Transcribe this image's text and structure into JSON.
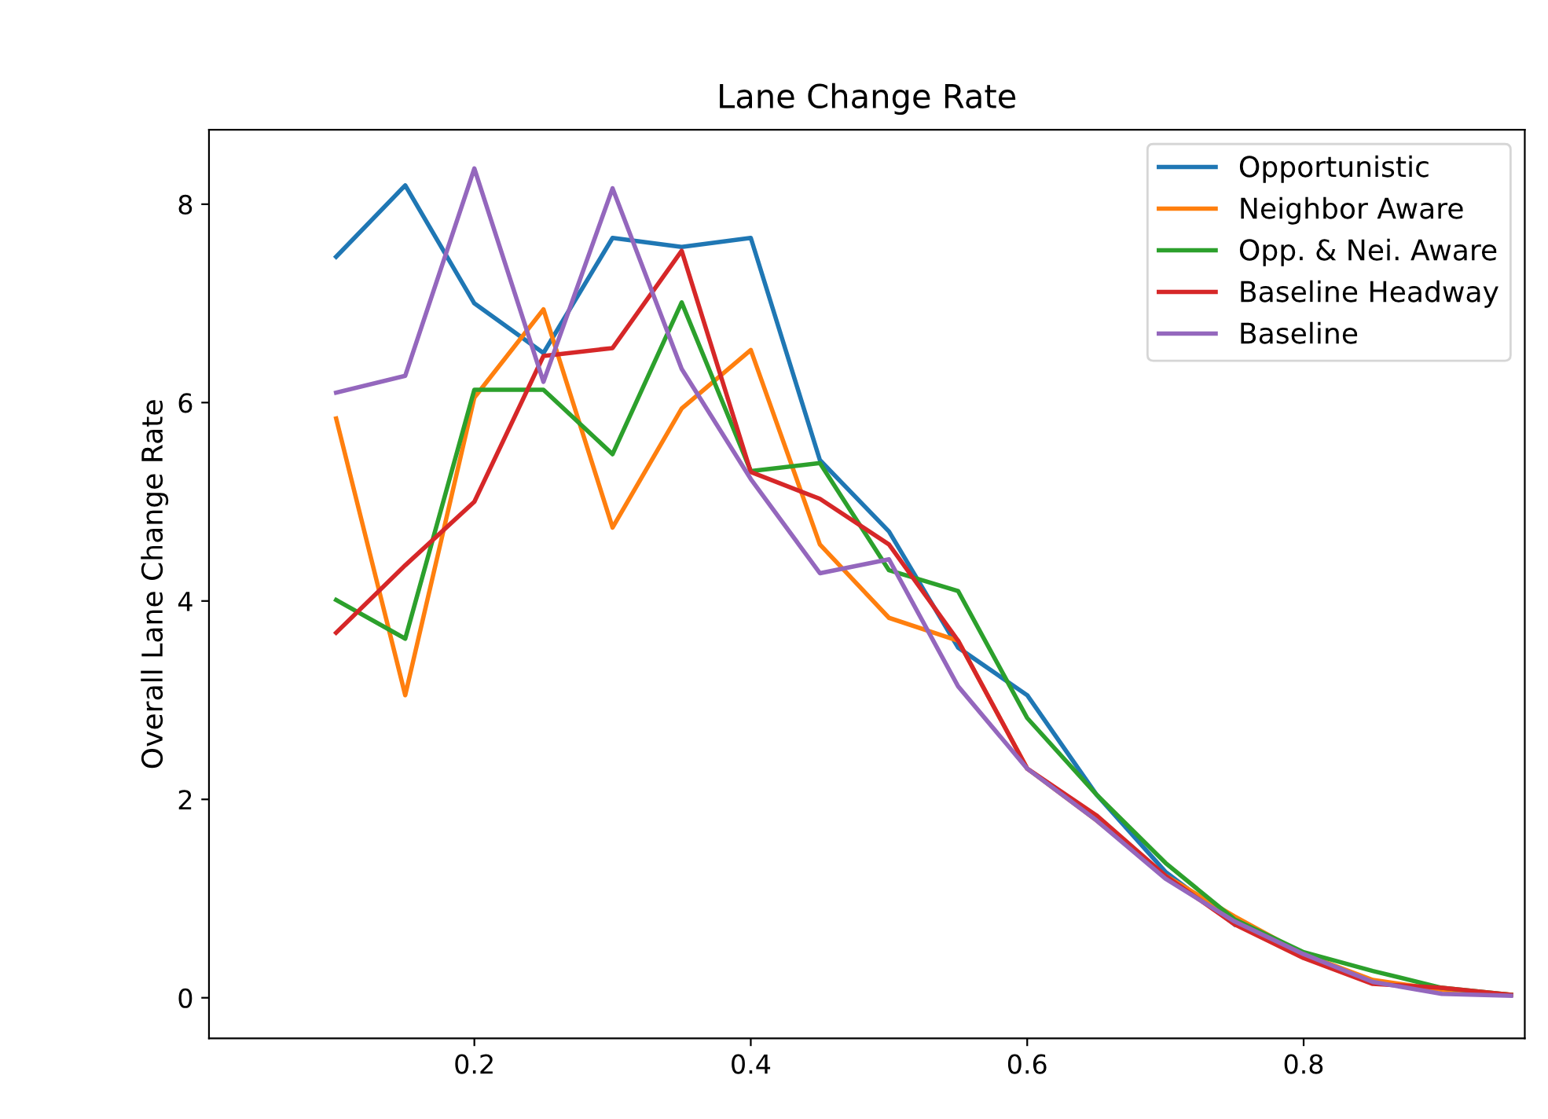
{
  "chart_data": {
    "type": "line",
    "title": "Lane Change Rate",
    "ylabel": "Overall Lane Change Rate",
    "x": [
      0.1,
      0.15,
      0.2,
      0.25,
      0.3,
      0.35,
      0.4,
      0.45,
      0.5,
      0.55,
      0.6,
      0.65,
      0.7,
      0.75,
      0.8,
      0.85,
      0.9,
      0.95
    ],
    "series": [
      {
        "name": "Opportunistic",
        "color": "#1f77b4",
        "values": [
          7.47,
          8.19,
          7.0,
          6.5,
          7.66,
          7.57,
          7.66,
          5.42,
          4.7,
          3.53,
          3.05,
          2.05,
          1.27,
          0.74,
          null,
          null,
          null,
          null
        ]
      },
      {
        "name": "Neighbor Aware",
        "color": "#ff7f0e",
        "values": [
          5.84,
          3.05,
          6.05,
          6.94,
          4.74,
          5.94,
          6.53,
          4.57,
          3.83,
          3.6,
          2.31,
          1.79,
          1.23,
          0.82,
          0.44,
          0.18,
          0.08,
          0.03
        ]
      },
      {
        "name": "Opp. & Nei. Aware",
        "color": "#2ca02c",
        "values": [
          4.01,
          3.62,
          6.13,
          6.13,
          5.48,
          7.01,
          5.31,
          5.39,
          4.31,
          4.1,
          2.82,
          2.05,
          1.36,
          0.79,
          0.46,
          0.27,
          0.1,
          0.03
        ]
      },
      {
        "name": "Baseline Headway",
        "color": "#d62728",
        "values": [
          3.68,
          4.36,
          5.0,
          6.47,
          6.55,
          7.53,
          5.3,
          5.03,
          4.57,
          3.6,
          2.31,
          1.84,
          1.23,
          0.74,
          0.4,
          0.14,
          0.1,
          0.03
        ]
      },
      {
        "name": "Baseline",
        "color": "#9467bd",
        "values": [
          6.1,
          6.27,
          8.36,
          6.21,
          8.16,
          6.34,
          5.23,
          4.28,
          4.42,
          3.14,
          2.31,
          1.79,
          1.2,
          0.77,
          0.44,
          0.16,
          0.04,
          0.02
        ]
      }
    ],
    "xlim": [
      0.008,
      0.96
    ],
    "ylim": [
      -0.41,
      8.75
    ],
    "xticks": [
      0.2,
      0.4,
      0.6,
      0.8
    ],
    "yticks": [
      0,
      2,
      4,
      6,
      8
    ],
    "grid": false,
    "legend": "top right",
    "marker": "none",
    "line_style": "solid"
  }
}
